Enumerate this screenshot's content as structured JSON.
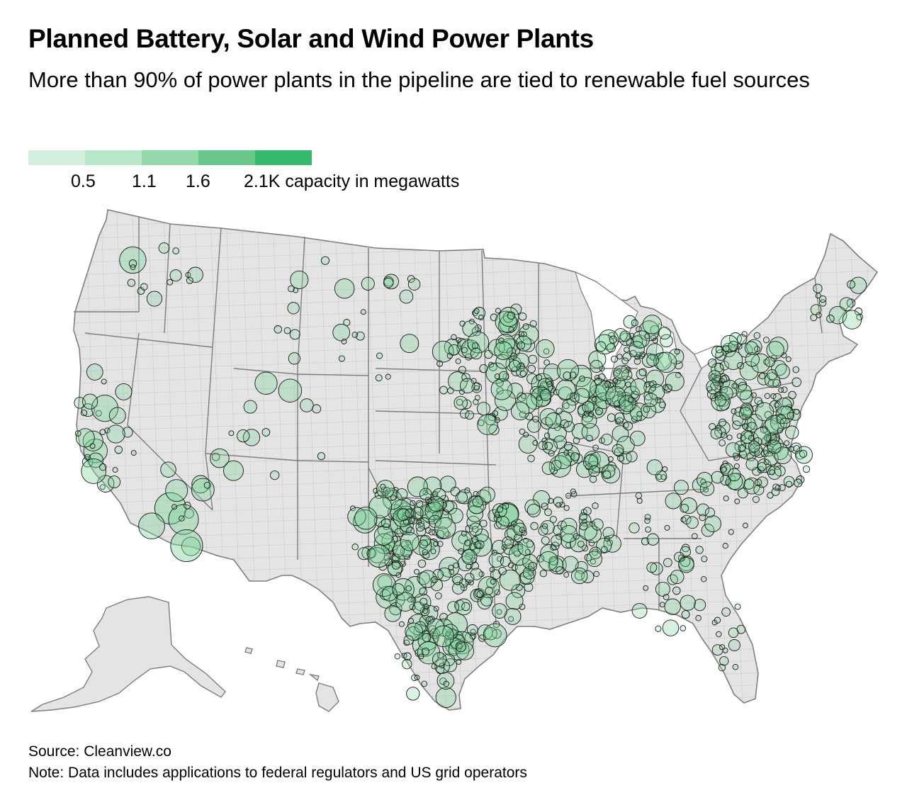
{
  "title": "Planned Battery, Solar and Wind Power Plants",
  "subtitle": "More than 90% of power plants in the pipeline are tied to renewable fuel sources",
  "legend": {
    "ticks": [
      "0.5",
      "1.1",
      "1.6",
      "2.1K capacity in megawatts"
    ],
    "colors": [
      "#d4efde",
      "#b8e6c8",
      "#93d9ab",
      "#6bc88d",
      "#34b96d"
    ]
  },
  "map_style": {
    "land": "#e4e4e4",
    "border": "#7d7d7d",
    "bubble_stroke": "#1a1a1a",
    "bubble_fill": "#7ed39b"
  },
  "regions": [
    "Contiguous United States",
    "Alaska",
    "Hawaii"
  ],
  "footer": {
    "source": "Source: Cleanview.co",
    "note": "Note: Data includes applications to federal regulators and US grid operators"
  }
}
